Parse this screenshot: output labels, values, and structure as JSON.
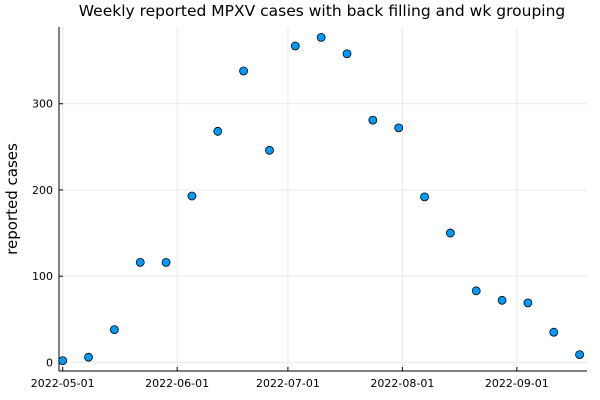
{
  "chart_data": {
    "type": "scatter",
    "title": "Weekly reported MPXV cases with back filling and wk grouping",
    "xlabel": "",
    "ylabel": "reported cases",
    "x_axis": {
      "type": "date",
      "range": [
        "2022-04-30",
        "2022-09-20"
      ],
      "ticks": [
        "2022-05-01",
        "2022-06-01",
        "2022-07-01",
        "2022-08-01",
        "2022-09-01"
      ]
    },
    "y_axis": {
      "range": [
        -10,
        389
      ],
      "ticks": [
        0,
        100,
        200,
        300
      ]
    },
    "grid": true,
    "legend": "none",
    "marker_color": "#009AFA",
    "points": [
      {
        "x": "2022-05-01",
        "y": 2
      },
      {
        "x": "2022-05-08",
        "y": 6
      },
      {
        "x": "2022-05-15",
        "y": 38
      },
      {
        "x": "2022-05-22",
        "y": 116
      },
      {
        "x": "2022-05-29",
        "y": 116
      },
      {
        "x": "2022-06-05",
        "y": 193
      },
      {
        "x": "2022-06-12",
        "y": 268
      },
      {
        "x": "2022-06-19",
        "y": 338
      },
      {
        "x": "2022-06-26",
        "y": 246
      },
      {
        "x": "2022-07-03",
        "y": 367
      },
      {
        "x": "2022-07-10",
        "y": 377
      },
      {
        "x": "2022-07-17",
        "y": 358
      },
      {
        "x": "2022-07-24",
        "y": 281
      },
      {
        "x": "2022-07-31",
        "y": 272
      },
      {
        "x": "2022-08-07",
        "y": 192
      },
      {
        "x": "2022-08-14",
        "y": 150
      },
      {
        "x": "2022-08-21",
        "y": 83
      },
      {
        "x": "2022-08-28",
        "y": 72
      },
      {
        "x": "2022-09-04",
        "y": 69
      },
      {
        "x": "2022-09-11",
        "y": 35
      },
      {
        "x": "2022-09-18",
        "y": 9
      }
    ]
  }
}
